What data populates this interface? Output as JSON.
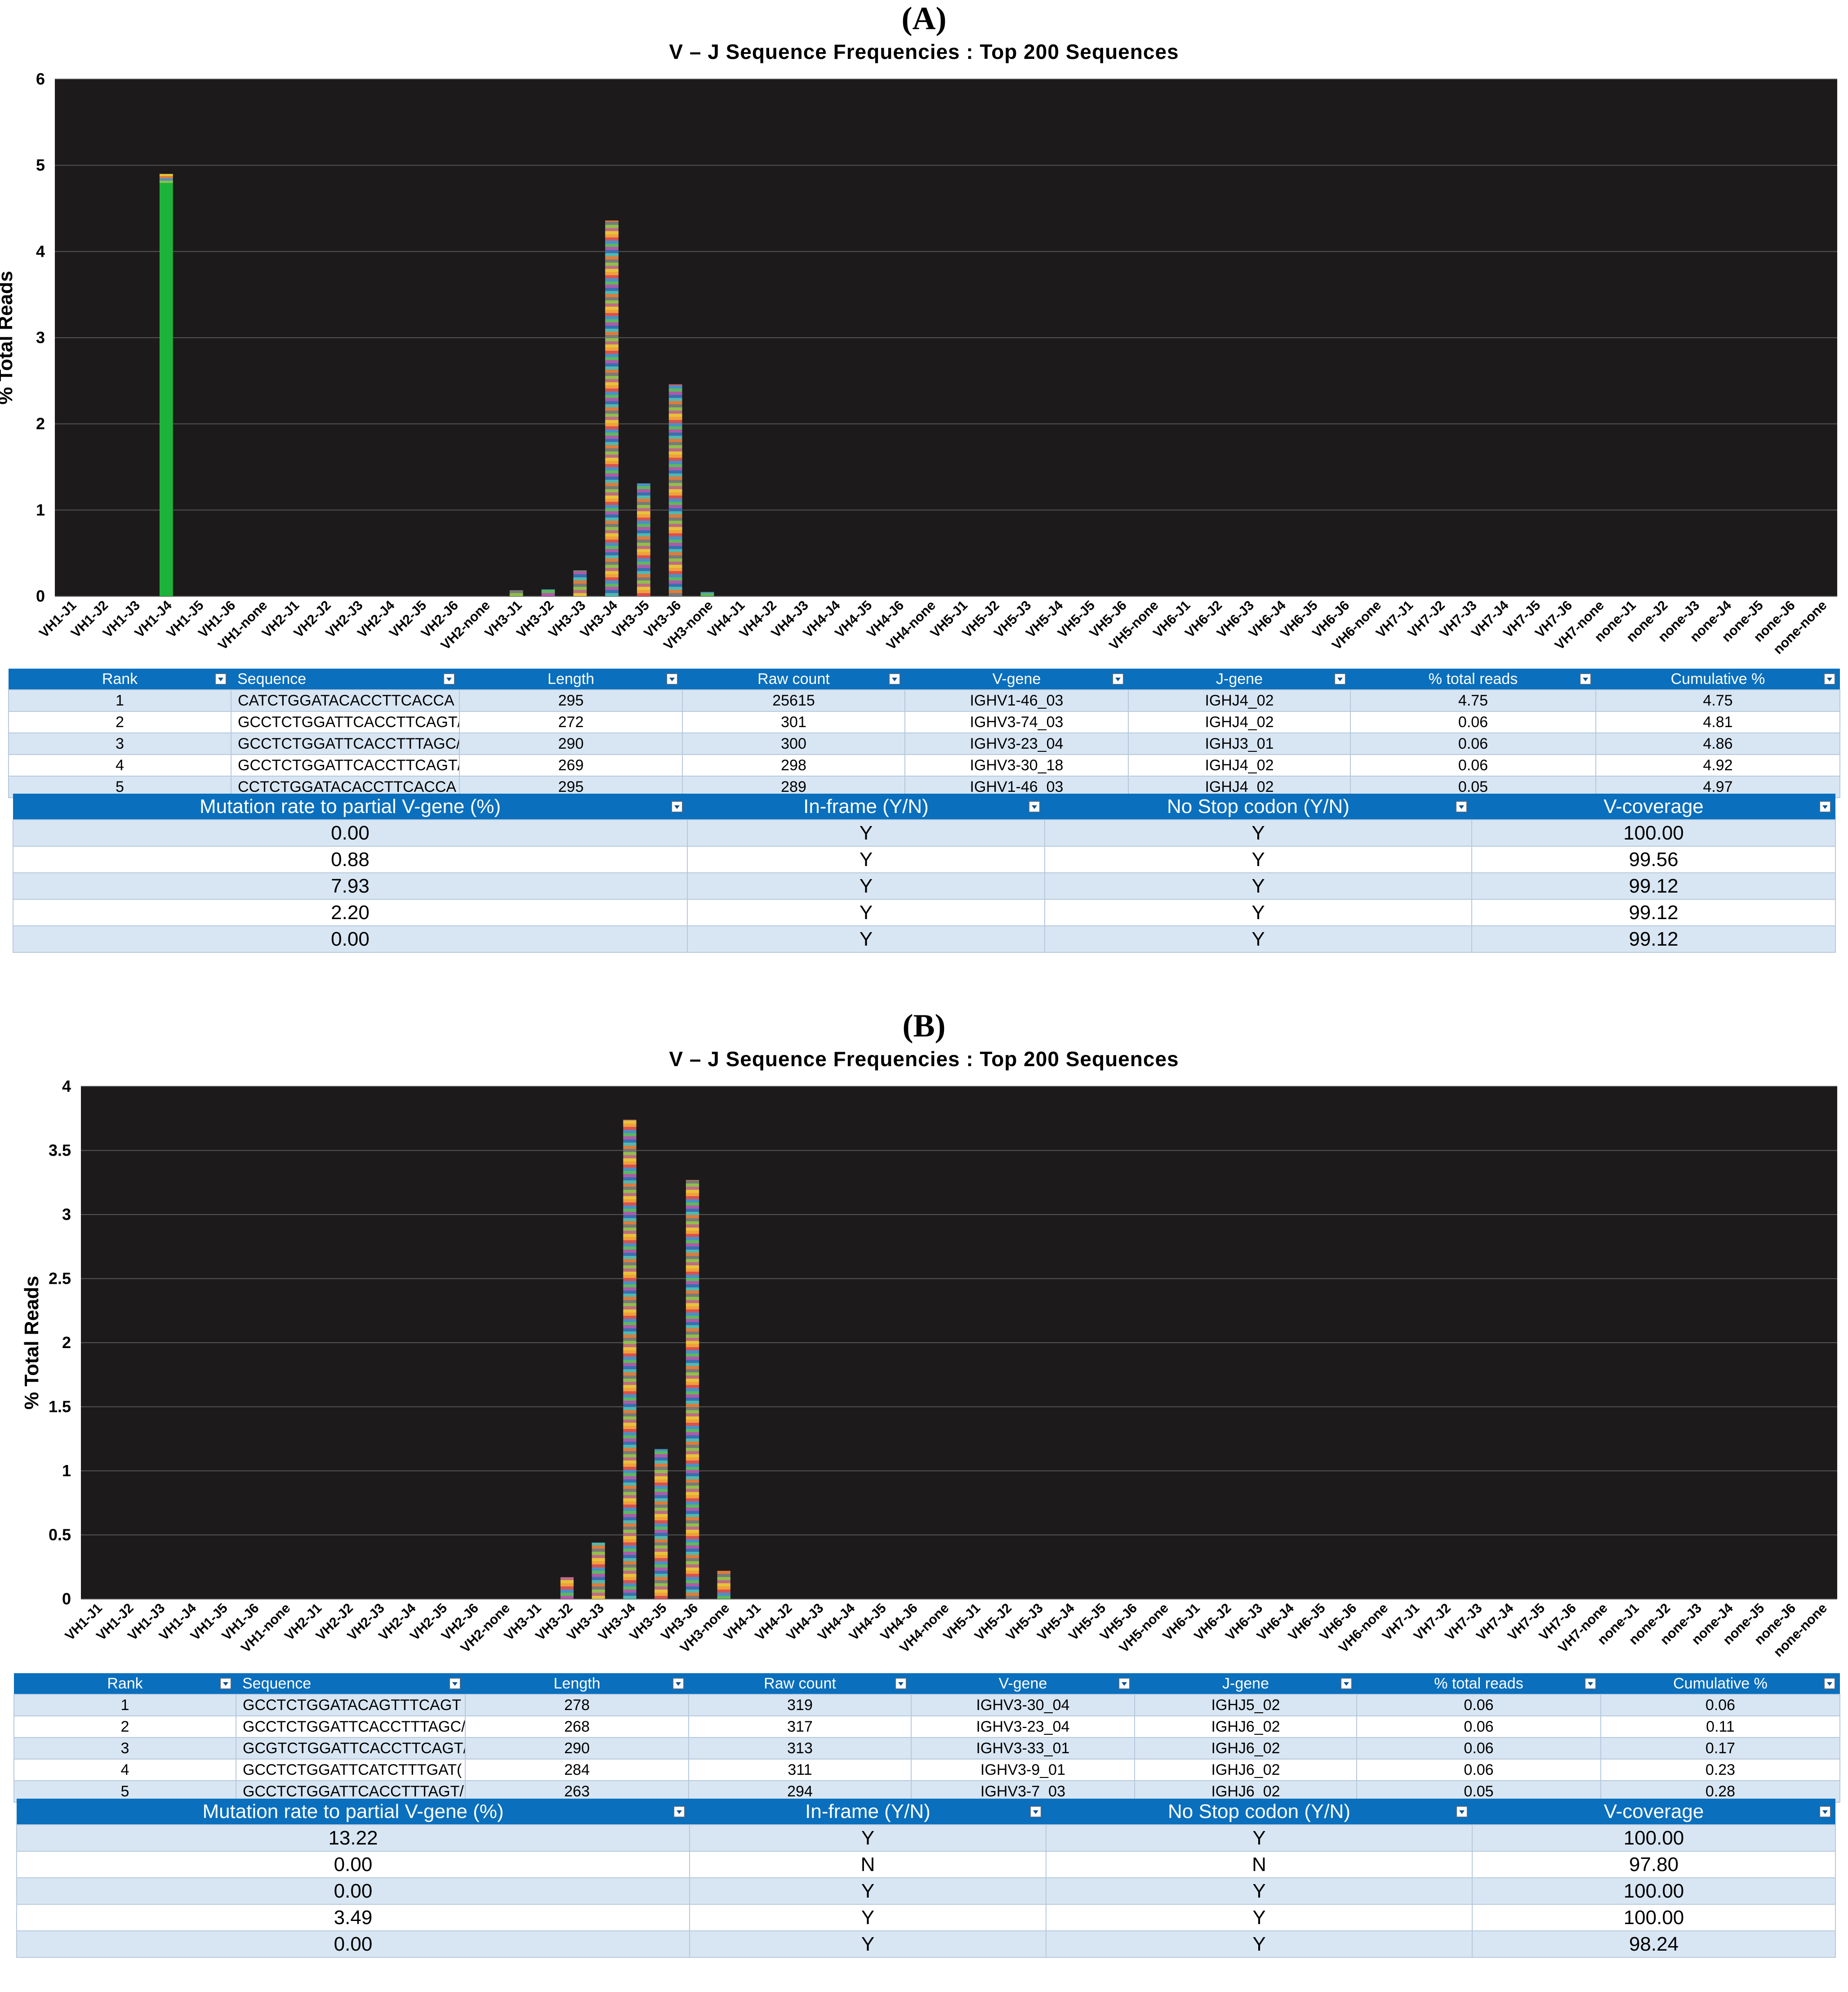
{
  "colors": {
    "plot_bg": "#1c1a1a",
    "header_blue": "#0a6fbd",
    "green": "#1db33a",
    "row_alt": "#d8e6f3"
  },
  "categories": [
    "VH1-J1",
    "VH1-J2",
    "VH1-J3",
    "VH1-J4",
    "VH1-J5",
    "VH1-J6",
    "VH1-none",
    "VH2-J1",
    "VH2-J2",
    "VH2-J3",
    "VH2-J4",
    "VH2-J5",
    "VH2-J6",
    "VH2-none",
    "VH3-J1",
    "VH3-J2",
    "VH3-J3",
    "VH3-J4",
    "VH3-J5",
    "VH3-J6",
    "VH3-none",
    "VH4-J1",
    "VH4-J2",
    "VH4-J3",
    "VH4-J4",
    "VH4-J5",
    "VH4-J6",
    "VH4-none",
    "VH5-J1",
    "VH5-J2",
    "VH5-J3",
    "VH5-J4",
    "VH5-J5",
    "VH5-J6",
    "VH5-none",
    "VH6-J1",
    "VH6-J2",
    "VH6-J3",
    "VH6-J4",
    "VH6-J5",
    "VH6-J6",
    "VH6-none",
    "VH7-J1",
    "VH7-J2",
    "VH7-J3",
    "VH7-J4",
    "VH7-J5",
    "VH7-J6",
    "VH7-none",
    "none-J1",
    "none-J2",
    "none-J3",
    "none-J4",
    "none-J5",
    "none-J6",
    "none-none"
  ],
  "panels": [
    {
      "letter": "(A)",
      "chart_data": {
        "type": "bar",
        "title": "V – J Sequence Frequencies : Top 200 Sequences",
        "ylabel": "% Total Reads",
        "ylim": [
          0,
          6
        ],
        "yticks": [
          "0",
          "1",
          "2",
          "3",
          "4",
          "5",
          "6"
        ],
        "ytick_values": [
          0,
          1,
          2,
          3,
          4,
          5,
          6
        ],
        "values": [
          0,
          0,
          0,
          4.9,
          0,
          0,
          0,
          0,
          0,
          0,
          0,
          0,
          0,
          0,
          0.07,
          0.08,
          0.3,
          4.36,
          1.31,
          2.46,
          0.05,
          0,
          0,
          0,
          0,
          0,
          0,
          0,
          0,
          0,
          0,
          0,
          0,
          0,
          0,
          0,
          0,
          0,
          0,
          0,
          0,
          0,
          0,
          0,
          0,
          0,
          0,
          0,
          0,
          0,
          0,
          0,
          0,
          0,
          0,
          0
        ],
        "grid": true
      },
      "table1": {
        "headers": [
          "Rank",
          "Sequence",
          "Length",
          "Raw count",
          "V-gene",
          "J-gene",
          "% total reads",
          "Cumulative %"
        ],
        "rows": [
          [
            "1",
            "CATCTGGATACACCTTCACCA",
            "295",
            "25615",
            "IGHV1-46_03",
            "IGHJ4_02",
            "4.75",
            "4.75"
          ],
          [
            "2",
            "GCCTCTGGATTCACCTTCAGT/",
            "272",
            "301",
            "IGHV3-74_03",
            "IGHJ4_02",
            "0.06",
            "4.81"
          ],
          [
            "3",
            "GCCTCTGGATTCACCTTTAGC/",
            "290",
            "300",
            "IGHV3-23_04",
            "IGHJ3_01",
            "0.06",
            "4.86"
          ],
          [
            "4",
            "GCCTCTGGATTCACCTTCAGT/",
            "269",
            "298",
            "IGHV3-30_18",
            "IGHJ4_02",
            "0.06",
            "4.92"
          ],
          [
            "5",
            "CCTCTGGATACACCTTCACCA",
            "295",
            "289",
            "IGHV1-46_03",
            "IGHJ4_02",
            "0.05",
            "4.97"
          ]
        ]
      },
      "table2": {
        "headers": [
          "Mutation rate to partial V-gene (%)",
          "In-frame (Y/N)",
          "No Stop codon (Y/N)",
          "V-coverage"
        ],
        "rows": [
          [
            "0.00",
            "Y",
            "Y",
            "100.00"
          ],
          [
            "0.88",
            "Y",
            "Y",
            "99.56"
          ],
          [
            "7.93",
            "Y",
            "Y",
            "99.12"
          ],
          [
            "2.20",
            "Y",
            "Y",
            "99.12"
          ],
          [
            "0.00",
            "Y",
            "Y",
            "99.12"
          ]
        ]
      }
    },
    {
      "letter": "(B)",
      "chart_data": {
        "type": "bar",
        "title": "V – J Sequence Frequencies : Top 200 Sequences",
        "ylabel": "% Total Reads",
        "ylim": [
          0,
          4
        ],
        "yticks": [
          "0",
          "0.5",
          "1",
          "1.5",
          "2",
          "2.5",
          "3",
          "3.5",
          "4"
        ],
        "ytick_values": [
          0,
          0.5,
          1,
          1.5,
          2,
          2.5,
          3,
          3.5,
          4
        ],
        "values": [
          0,
          0,
          0,
          0,
          0,
          0,
          0,
          0,
          0,
          0,
          0,
          0,
          0,
          0,
          0,
          0.17,
          0.44,
          3.74,
          1.17,
          3.27,
          0.22,
          0,
          0,
          0,
          0,
          0,
          0,
          0,
          0,
          0,
          0,
          0,
          0,
          0,
          0,
          0,
          0,
          0,
          0,
          0,
          0,
          0,
          0,
          0,
          0,
          0,
          0,
          0,
          0,
          0,
          0,
          0,
          0,
          0,
          0,
          0
        ],
        "grid": true
      },
      "table1": {
        "headers": [
          "Rank",
          "Sequence",
          "Length",
          "Raw count",
          "V-gene",
          "J-gene",
          "% total reads",
          "Cumulative %"
        ],
        "rows": [
          [
            "1",
            "GCCTCTGGATACAGTTTCAGT",
            "278",
            "319",
            "IGHV3-30_04",
            "IGHJ5_02",
            "0.06",
            "0.06"
          ],
          [
            "2",
            "GCCTCTGGATTCACCTTTAGC/",
            "268",
            "317",
            "IGHV3-23_04",
            "IGHJ6_02",
            "0.06",
            "0.11"
          ],
          [
            "3",
            "GCGTCTGGATTCACCTTCAGT/",
            "290",
            "313",
            "IGHV3-33_01",
            "IGHJ6_02",
            "0.06",
            "0.17"
          ],
          [
            "4",
            "GCCTCTGGATTCATCTTTGAT(",
            "284",
            "311",
            "IGHV3-9_01",
            "IGHJ6_02",
            "0.06",
            "0.23"
          ],
          [
            "5",
            "GCCTCTGGATTCACCTTTAGT/",
            "263",
            "294",
            "IGHV3-7_03",
            "IGHJ6_02",
            "0.05",
            "0.28"
          ]
        ]
      },
      "table2": {
        "headers": [
          "Mutation rate to partial V-gene (%)",
          "In-frame (Y/N)",
          "No Stop codon (Y/N)",
          "V-coverage"
        ],
        "rows": [
          [
            "13.22",
            "Y",
            "Y",
            "100.00"
          ],
          [
            "0.00",
            "N",
            "N",
            "97.80"
          ],
          [
            "0.00",
            "Y",
            "Y",
            "100.00"
          ],
          [
            "3.49",
            "Y",
            "Y",
            "100.00"
          ],
          [
            "0.00",
            "Y",
            "Y",
            "98.24"
          ]
        ]
      }
    }
  ]
}
